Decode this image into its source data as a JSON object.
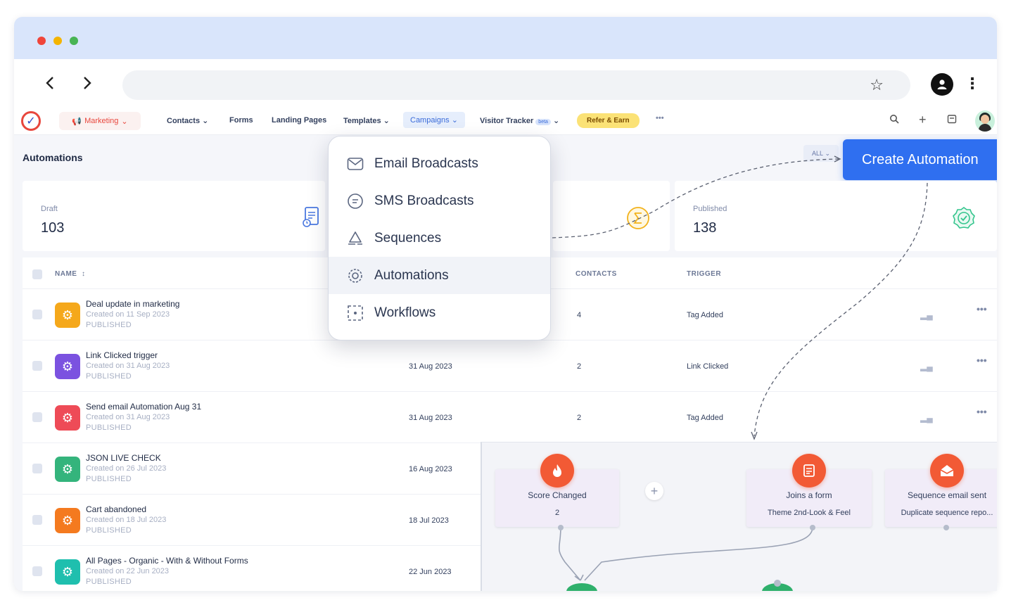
{
  "browser": {
    "back_icon": "chevron-left-icon",
    "forward_icon": "chevron-right-icon",
    "bookmark_icon": "star-outline-icon",
    "profile_icon": "account-circle-icon",
    "menu_icon": "kebab-menu-icon"
  },
  "app_nav": {
    "module_label": "Marketing",
    "items": {
      "contacts": "Contacts",
      "forms": "Forms",
      "landing_pages": "Landing Pages",
      "templates": "Templates",
      "campaigns": "Campaigns",
      "visitor_tracker": "Visitor Tracker",
      "beta": "beta"
    },
    "refer_label": "Refer & Earn",
    "more_label": "•••"
  },
  "page": {
    "title": "Automations",
    "filter_label": "ALL",
    "create_button": "Create Automation"
  },
  "stats": {
    "draft": {
      "label": "Draft",
      "value": "103"
    },
    "published": {
      "label": "Published",
      "value": "138"
    }
  },
  "table": {
    "headers": {
      "name": "NAME",
      "contacts": "CONTACTS",
      "trigger": "TRIGGER"
    },
    "rows": [
      {
        "name": "Deal update in marketing",
        "created": "Created on 11 Sep 2023",
        "status": "PUBLISHED",
        "date": "",
        "contacts": "4",
        "trigger": "Tag Added",
        "color": "#f5a81b"
      },
      {
        "name": "Link Clicked trigger",
        "created": "Created on 31 Aug 2023",
        "status": "PUBLISHED",
        "date": "31 Aug 2023",
        "contacts": "2",
        "trigger": "Link Clicked",
        "color": "#7b52e0"
      },
      {
        "name": "Send email Automation Aug 31",
        "created": "Created on 31 Aug 2023",
        "status": "PUBLISHED",
        "date": "31 Aug 2023",
        "contacts": "2",
        "trigger": "Tag Added",
        "color": "#ee4b57"
      },
      {
        "name": "JSON LIVE CHECK",
        "created": "Created on 26 Jul 2023",
        "status": "PUBLISHED",
        "date": "16 Aug 2023",
        "contacts": "",
        "trigger": "",
        "color": "#34b47c"
      },
      {
        "name": "Cart abandoned",
        "created": "Created on 18 Jul 2023",
        "status": "PUBLISHED",
        "date": "18 Jul 2023",
        "contacts": "",
        "trigger": "",
        "color": "#f47a1f"
      },
      {
        "name": "All Pages - Organic - With & Without Forms",
        "created": "Created on 22 Jun 2023",
        "status": "PUBLISHED",
        "date": "22 Jun 2023",
        "contacts": "",
        "trigger": "",
        "color": "#1fbfae"
      }
    ]
  },
  "campaigns_menu": {
    "items": [
      {
        "label": "Email Broadcasts",
        "icon": "envelope-icon"
      },
      {
        "label": "SMS Broadcasts",
        "icon": "chat-bubble-icon"
      },
      {
        "label": "Sequences",
        "icon": "recycle-icon"
      },
      {
        "label": "Automations",
        "icon": "automation-gear-icon"
      },
      {
        "label": "Workflows",
        "icon": "workflow-icon"
      }
    ],
    "active_index": 3
  },
  "flow": {
    "nodes": [
      {
        "title": "Score Changed",
        "sub": "2"
      },
      {
        "title": "Joins a form",
        "sub": "Theme 2nd-Look & Feel"
      },
      {
        "title": "Sequence email sent",
        "sub": "Duplicate sequence repo..."
      }
    ],
    "plus_label": "+",
    "node_color": "#f25a35"
  },
  "colors": {
    "primary": "#2f6ff0",
    "accent_red": "#e8473d",
    "published_green": "#34c58d",
    "sum_yellow": "#f2b21c"
  }
}
